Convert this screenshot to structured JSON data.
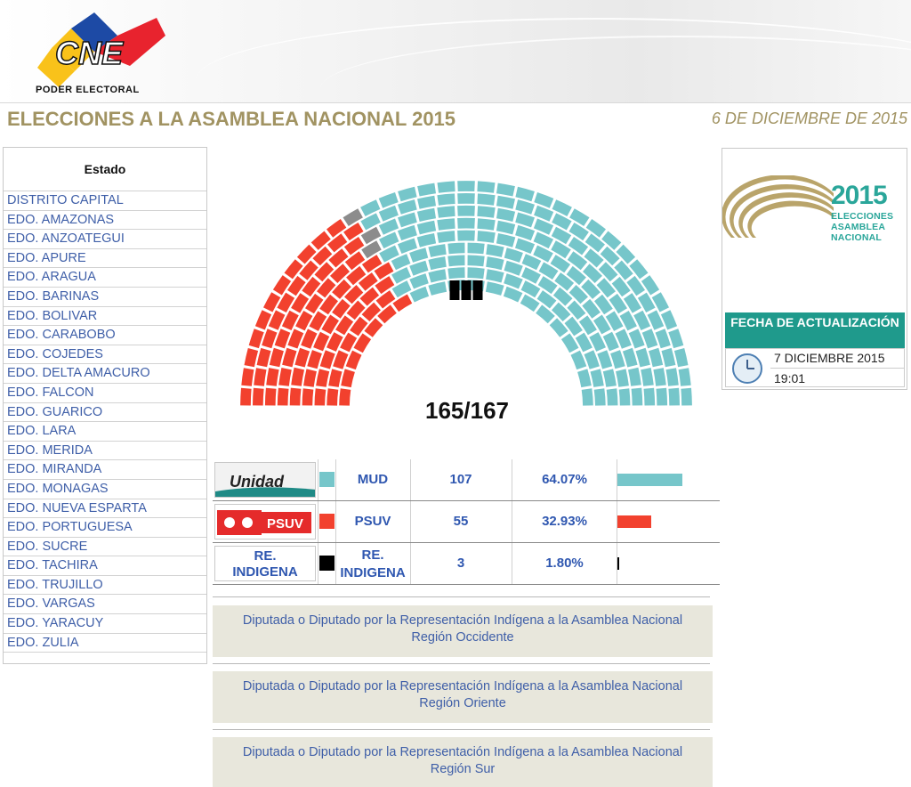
{
  "header": {
    "logo_text": "CNE",
    "logo_sub": "PODER ELECTORAL"
  },
  "title": "ELECCIONES A LA ASAMBLEA NACIONAL 2015",
  "date": "6 DE DICIEMBRE DE 2015",
  "states": {
    "header": "Estado",
    "items": [
      "DISTRITO CAPITAL",
      "EDO. AMAZONAS",
      "EDO. ANZOATEGUI",
      "EDO. APURE",
      "EDO. ARAGUA",
      "EDO. BARINAS",
      "EDO. BOLIVAR",
      "EDO. CARABOBO",
      "EDO. COJEDES",
      "EDO. DELTA AMACURO",
      "EDO. FALCON",
      "EDO. GUARICO",
      "EDO. LARA",
      "EDO. MERIDA",
      "EDO. MIRANDA",
      "EDO. MONAGAS",
      "EDO. NUEVA ESPARTA",
      "EDO. PORTUGUESA",
      "EDO. SUCRE",
      "EDO. TACHIRA",
      "EDO. TRUJILLO",
      "EDO. VARGAS",
      "EDO. YARACUY",
      "EDO. ZULIA"
    ]
  },
  "hemicycle": {
    "seat_count_label": "165/167",
    "total_seats": 167,
    "assigned_seats": 165,
    "colors": {
      "mud": "#76c6ca",
      "psuv": "#f2412e",
      "indigena": "#000000",
      "pending": "#8c8c8c"
    }
  },
  "results": [
    {
      "name": "MUD",
      "seats": "107",
      "pct": "64.07%",
      "share": 0.6407,
      "color": "#76c6ca",
      "logo": "Unidad"
    },
    {
      "name": "PSUV",
      "seats": "55",
      "pct": "32.93%",
      "share": 0.3293,
      "color": "#f2412e",
      "logo": "PSUV"
    },
    {
      "name": "RE. INDIGENA",
      "seats": "3",
      "pct": "1.80%",
      "share": 0.018,
      "color": "#000000",
      "logo": "RE. INDIGENA"
    }
  ],
  "indigenous_regions": [
    {
      "line1": "Diputada o Diputado por la Representación Indígena a la Asamblea Nacional",
      "line2": "Región Occidente"
    },
    {
      "line1": "Diputada o Diputado por la Representación Indígena a la Asamblea Nacional",
      "line2": "Región Oriente"
    },
    {
      "line1": "Diputada o Diputado por la Representación Indígena a la Asamblea Nacional",
      "line2": "Región Sur"
    }
  ],
  "badge": {
    "year": "2015",
    "lines": [
      "ELECCIONES",
      "ASAMBLEA",
      "NACIONAL"
    ]
  },
  "update": {
    "title": "FECHA DE ACTUALIZACIÓN",
    "date": "7 DICIEMBRE 2015",
    "time": "19:01"
  }
}
